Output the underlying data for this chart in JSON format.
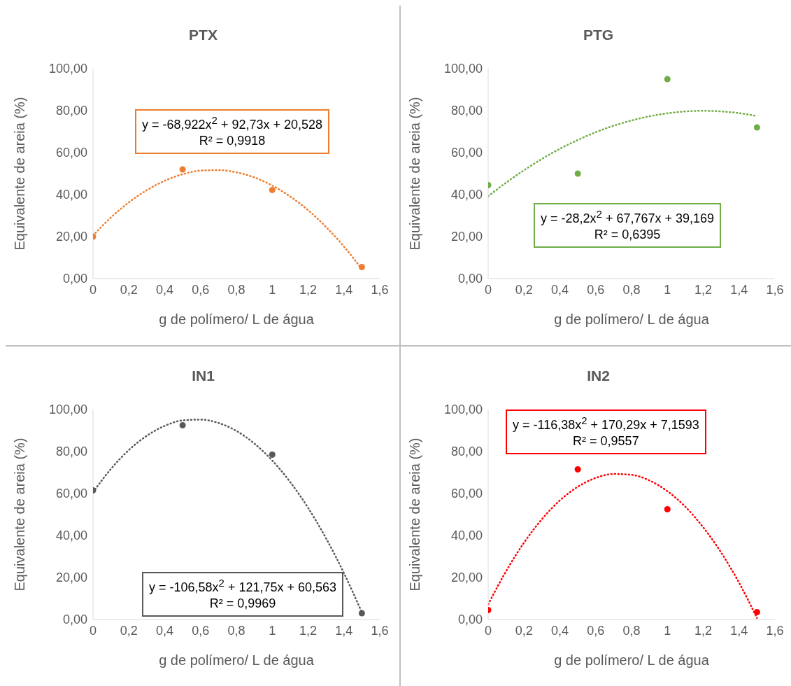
{
  "chart_data": [
    {
      "type": "scatter",
      "title": "PTX",
      "xlabel": "g de polímero/ L de água",
      "ylabel": "Equivalente de areia (%)",
      "xlim": [
        0,
        1.6
      ],
      "xticks": [
        {
          "value": 0,
          "label": "0"
        },
        {
          "value": 0.2,
          "label": "0,2"
        },
        {
          "value": 0.4,
          "label": "0,4"
        },
        {
          "value": 0.6,
          "label": "0,6"
        },
        {
          "value": 0.8,
          "label": "0,8"
        },
        {
          "value": 1,
          "label": "1"
        },
        {
          "value": 1.2,
          "label": "1,2"
        },
        {
          "value": 1.4,
          "label": "1,4"
        },
        {
          "value": 1.6,
          "label": "1,6"
        }
      ],
      "ylim": [
        0,
        100
      ],
      "yticks": [
        {
          "value": 0,
          "label": "0,00"
        },
        {
          "value": 20,
          "label": "20,00"
        },
        {
          "value": 40,
          "label": "40,00"
        },
        {
          "value": 60,
          "label": "60,00"
        },
        {
          "value": 80,
          "label": "80,00"
        },
        {
          "value": 100,
          "label": "100,00"
        }
      ],
      "annotations": [
        "y = -68,922x$^{2}$ + 92,73x + 20,528",
        "R² = 0,9918"
      ],
      "series": [
        {
          "color": "#ed7d31",
          "marker": "circle",
          "x": [
            0,
            0.5,
            1,
            1.5
          ],
          "values": [
            20,
            52,
            42.2,
            5.5
          ]
        },
        {
          "type": "line",
          "color": "#ed7d31",
          "marker": "none",
          "line_style": "dotted",
          "x": [
            0,
            0.1,
            0.2,
            0.3,
            0.4,
            0.5,
            0.6,
            0.7,
            0.8,
            0.9,
            1,
            1.1,
            1.2,
            1.3,
            1.4,
            1.5
          ],
          "values": [
            20.5,
            29.1,
            36.3,
            42.1,
            46.6,
            49.7,
            51.4,
            51.7,
            50.6,
            48.2,
            44.3,
            39.1,
            32.6,
            24.6,
            15.3,
            4.5
          ]
        }
      ]
    },
    {
      "type": "scatter",
      "title": "PTG",
      "xlabel": "g de polímero/ L de água",
      "ylabel": "Equivalente de areia (%)",
      "xlim": [
        0,
        1.6
      ],
      "xticks": [
        {
          "value": 0,
          "label": "0"
        },
        {
          "value": 0.2,
          "label": "0,2"
        },
        {
          "value": 0.4,
          "label": "0,4"
        },
        {
          "value": 0.6,
          "label": "0,6"
        },
        {
          "value": 0.8,
          "label": "0,8"
        },
        {
          "value": 1,
          "label": "1"
        },
        {
          "value": 1.2,
          "label": "1,2"
        },
        {
          "value": 1.4,
          "label": "1,4"
        },
        {
          "value": 1.6,
          "label": "1,6"
        }
      ],
      "ylim": [
        0,
        100
      ],
      "yticks": [
        {
          "value": 0,
          "label": "0,00"
        },
        {
          "value": 20,
          "label": "20,00"
        },
        {
          "value": 40,
          "label": "40,00"
        },
        {
          "value": 60,
          "label": "60,00"
        },
        {
          "value": 80,
          "label": "80,00"
        },
        {
          "value": 100,
          "label": "100,00"
        }
      ],
      "annotations": [
        "y = -28,2x$^{2}$ + 67,767x + 39,169",
        "R² = 0,6395"
      ],
      "series": [
        {
          "color": "#70ad47",
          "marker": "circle",
          "x": [
            0,
            0.5,
            1,
            1.5
          ],
          "values": [
            44.5,
            50,
            95,
            72
          ]
        },
        {
          "type": "line",
          "color": "#70ad47",
          "marker": "none",
          "line_style": "dotted",
          "x": [
            0,
            0.1,
            0.2,
            0.3,
            0.4,
            0.5,
            0.6,
            0.7,
            0.8,
            0.9,
            1,
            1.1,
            1.2,
            1.3,
            1.4,
            1.5
          ],
          "values": [
            39.2,
            45.7,
            51.6,
            57.0,
            61.8,
            66.0,
            69.7,
            72.8,
            75.3,
            77.3,
            78.7,
            79.6,
            79.9,
            79.6,
            78.8,
            77.4
          ]
        }
      ]
    },
    {
      "type": "scatter",
      "title": "IN1",
      "xlabel": "g de polímero/ L de água",
      "ylabel": "Equivalente de areia (%)",
      "xlim": [
        0,
        1.6
      ],
      "xticks": [
        {
          "value": 0,
          "label": "0"
        },
        {
          "value": 0.2,
          "label": "0,2"
        },
        {
          "value": 0.4,
          "label": "0,4"
        },
        {
          "value": 0.6,
          "label": "0,6"
        },
        {
          "value": 0.8,
          "label": "0,8"
        },
        {
          "value": 1,
          "label": "1"
        },
        {
          "value": 1.2,
          "label": "1,2"
        },
        {
          "value": 1.4,
          "label": "1,4"
        },
        {
          "value": 1.6,
          "label": "1,6"
        }
      ],
      "ylim": [
        0,
        100
      ],
      "yticks": [
        {
          "value": 0,
          "label": "0,00"
        },
        {
          "value": 20,
          "label": "20,00"
        },
        {
          "value": 40,
          "label": "40,00"
        },
        {
          "value": 60,
          "label": "60,00"
        },
        {
          "value": 80,
          "label": "80,00"
        },
        {
          "value": 100,
          "label": "100,00"
        }
      ],
      "annotations": [
        "y = -106,58x$^{2}$ + 121,75x + 60,563",
        "R² = 0,9969"
      ],
      "series": [
        {
          "color": "#595959",
          "marker": "circle",
          "x": [
            0,
            0.5,
            1,
            1.5
          ],
          "values": [
            61.5,
            92.5,
            78.5,
            3
          ]
        },
        {
          "type": "line",
          "color": "#595959",
          "marker": "none",
          "line_style": "dotted",
          "x": [
            0,
            0.1,
            0.2,
            0.3,
            0.4,
            0.5,
            0.6,
            0.7,
            0.8,
            0.9,
            1,
            1.1,
            1.2,
            1.3,
            1.4,
            1.5
          ],
          "values": [
            60.6,
            71.7,
            80.7,
            87.5,
            92.2,
            94.8,
            95.2,
            93.6,
            89.8,
            83.8,
            75.7,
            65.5,
            53.2,
            38.7,
            22.1,
            3.4
          ]
        }
      ]
    },
    {
      "type": "scatter",
      "title": "IN2",
      "xlabel": "g de polímero/ L de água",
      "ylabel": "Equivalente de areia (%)",
      "xlim": [
        0,
        1.6
      ],
      "xticks": [
        {
          "value": 0,
          "label": "0"
        },
        {
          "value": 0.2,
          "label": "0,2"
        },
        {
          "value": 0.4,
          "label": "0,4"
        },
        {
          "value": 0.6,
          "label": "0,6"
        },
        {
          "value": 0.8,
          "label": "0,8"
        },
        {
          "value": 1,
          "label": "1"
        },
        {
          "value": 1.2,
          "label": "1,2"
        },
        {
          "value": 1.4,
          "label": "1,4"
        },
        {
          "value": 1.6,
          "label": "1,6"
        }
      ],
      "ylim": [
        0,
        100
      ],
      "yticks": [
        {
          "value": 0,
          "label": "0,00"
        },
        {
          "value": 20,
          "label": "20,00"
        },
        {
          "value": 40,
          "label": "40,00"
        },
        {
          "value": 60,
          "label": "60,00"
        },
        {
          "value": 80,
          "label": "80,00"
        },
        {
          "value": 100,
          "label": "100,00"
        }
      ],
      "annotations": [
        "y = -116,38x$^{2}$ + 170,29x + 7,1593",
        "R² = 0,9557"
      ],
      "series": [
        {
          "color": "#ff0000",
          "marker": "circle",
          "x": [
            0,
            0.5,
            1,
            1.5
          ],
          "values": [
            4.5,
            71.5,
            52.5,
            3.5
          ]
        },
        {
          "type": "line",
          "color": "#ff0000",
          "marker": "none",
          "line_style": "dotted",
          "x": [
            0,
            0.1,
            0.2,
            0.3,
            0.4,
            0.5,
            0.6,
            0.7,
            0.8,
            0.9,
            1,
            1.1,
            1.2,
            1.3,
            1.4,
            1.5
          ],
          "values": [
            7.2,
            23.0,
            36.6,
            47.8,
            56.7,
            63.2,
            67.4,
            69.3,
            68.9,
            66.2,
            61.1,
            53.7,
            43.9,
            31.9,
            17.5,
            0.7
          ]
        }
      ]
    }
  ]
}
